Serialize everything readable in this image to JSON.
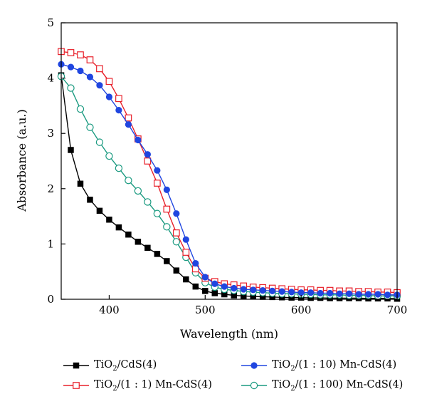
{
  "chart_data": {
    "type": "line",
    "title": "",
    "xlabel": "Wavelength (nm)",
    "ylabel": "Absorbance (a.u.)",
    "xlim": [
      350,
      700
    ],
    "ylim": [
      0,
      5
    ],
    "xticks": [
      400,
      500,
      600,
      700
    ],
    "yticks": [
      0,
      1,
      2,
      3,
      4,
      5
    ],
    "grid": false,
    "legend_position": "bottom",
    "x": [
      350,
      360,
      370,
      380,
      390,
      400,
      410,
      420,
      430,
      440,
      450,
      460,
      470,
      480,
      490,
      500,
      510,
      520,
      530,
      540,
      550,
      560,
      570,
      580,
      590,
      600,
      610,
      620,
      630,
      640,
      650,
      660,
      670,
      680,
      690,
      700
    ],
    "series": [
      {
        "name": "TiO2/CdS(4)",
        "label_parts": [
          "TiO",
          "2",
          "/CdS(4)"
        ],
        "color": "#000000",
        "marker": "filled-square",
        "values": [
          4.05,
          2.7,
          2.09,
          1.8,
          1.6,
          1.44,
          1.3,
          1.17,
          1.04,
          0.93,
          0.82,
          0.69,
          0.52,
          0.36,
          0.23,
          0.15,
          0.11,
          0.09,
          0.07,
          0.06,
          0.05,
          0.045,
          0.04,
          0.035,
          0.03,
          0.03,
          0.025,
          0.025,
          0.02,
          0.02,
          0.02,
          0.02,
          0.015,
          0.015,
          0.015,
          0.01
        ]
      },
      {
        "name": "TiO2/(1:1) Mn-CdS(4)",
        "label_parts": [
          "TiO",
          "2",
          "/(1 : 1) Mn-CdS(4)"
        ],
        "color": "#e8202a",
        "marker": "open-square",
        "values": [
          4.48,
          4.46,
          4.42,
          4.33,
          4.17,
          3.94,
          3.63,
          3.28,
          2.9,
          2.5,
          2.1,
          1.63,
          1.2,
          0.85,
          0.55,
          0.38,
          0.32,
          0.28,
          0.26,
          0.24,
          0.22,
          0.21,
          0.2,
          0.19,
          0.18,
          0.17,
          0.17,
          0.16,
          0.16,
          0.15,
          0.15,
          0.14,
          0.14,
          0.13,
          0.13,
          0.12
        ]
      },
      {
        "name": "TiO2/(1:10) Mn-CdS(4)",
        "label_parts": [
          "TiO",
          "2",
          "/(1 : 10) Mn-CdS(4)"
        ],
        "color": "#2046e0",
        "marker": "filled-circle",
        "values": [
          4.25,
          4.2,
          4.13,
          4.02,
          3.87,
          3.66,
          3.42,
          3.16,
          2.88,
          2.62,
          2.33,
          1.98,
          1.55,
          1.08,
          0.65,
          0.4,
          0.28,
          0.23,
          0.2,
          0.18,
          0.17,
          0.16,
          0.15,
          0.14,
          0.13,
          0.12,
          0.12,
          0.11,
          0.11,
          0.1,
          0.1,
          0.09,
          0.09,
          0.09,
          0.08,
          0.08
        ]
      },
      {
        "name": "TiO2/(1:100) Mn-CdS(4)",
        "label_parts": [
          "TiO",
          "2",
          "/(1 : 100) Mn-CdS(4)"
        ],
        "color": "#1a9a80",
        "marker": "open-circle",
        "values": [
          4.03,
          3.82,
          3.44,
          3.11,
          2.84,
          2.59,
          2.37,
          2.15,
          1.96,
          1.76,
          1.55,
          1.31,
          1.04,
          0.76,
          0.48,
          0.3,
          0.22,
          0.18,
          0.16,
          0.14,
          0.13,
          0.12,
          0.11,
          0.1,
          0.1,
          0.09,
          0.09,
          0.08,
          0.08,
          0.08,
          0.07,
          0.07,
          0.07,
          0.06,
          0.06,
          0.06
        ]
      }
    ]
  }
}
